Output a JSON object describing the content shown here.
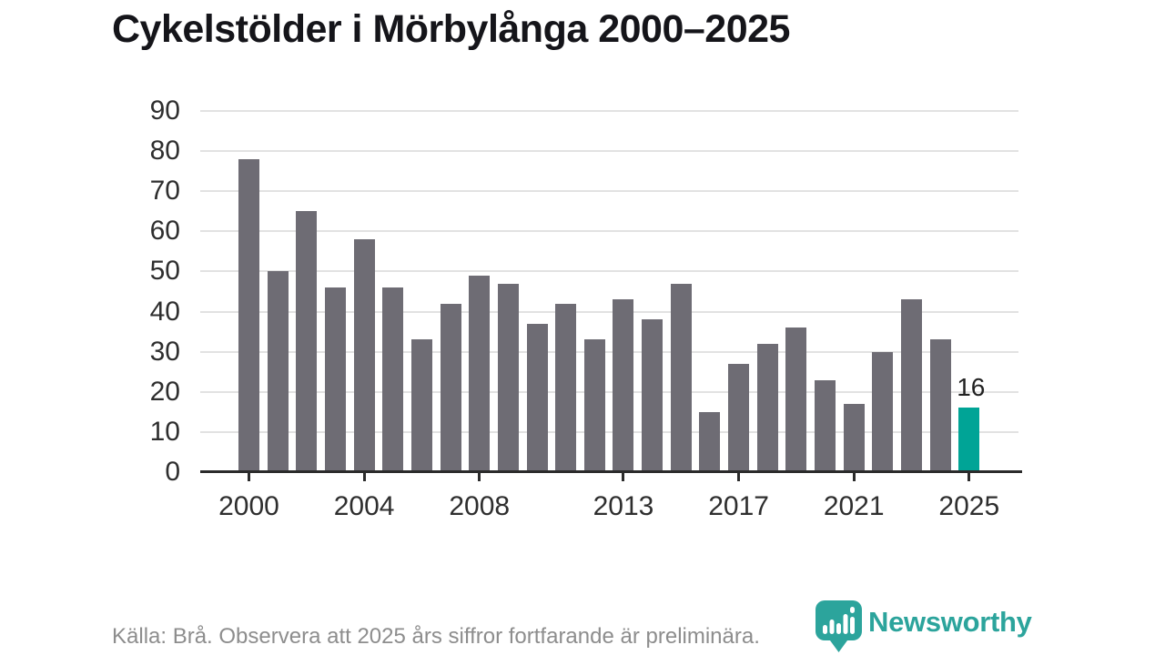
{
  "header": {
    "title": "Cykelstölder i Mörbylånga 2000–2025"
  },
  "chart_data": {
    "type": "bar",
    "title": "Cykelstölder i Mörbylånga 2000–2025",
    "categories": [
      2000,
      2001,
      2002,
      2003,
      2004,
      2005,
      2006,
      2007,
      2008,
      2009,
      2010,
      2011,
      2012,
      2013,
      2014,
      2015,
      2016,
      2017,
      2018,
      2019,
      2020,
      2021,
      2022,
      2023,
      2024,
      2025
    ],
    "values": [
      78,
      50,
      65,
      46,
      58,
      46,
      33,
      42,
      49,
      47,
      37,
      42,
      33,
      43,
      38,
      47,
      15,
      27,
      32,
      36,
      23,
      17,
      30,
      43,
      33,
      16
    ],
    "highlight_category": 2025,
    "data_label": {
      "category": 2025,
      "text": "16"
    },
    "ylim": [
      0,
      90
    ],
    "y_ticks": [
      0,
      10,
      20,
      30,
      40,
      50,
      60,
      70,
      80,
      90
    ],
    "x_tick_labels": [
      "2000",
      "2004",
      "2008",
      "2013",
      "2017",
      "2021",
      "2025"
    ],
    "grid": "horizontal",
    "legend": "none",
    "colors": {
      "bar": "#6e6c74",
      "highlight": "#00a496",
      "gridline": "#e2e2e2",
      "axis": "#2b2b2b",
      "tick_label": "#2e2e2e"
    }
  },
  "footer": {
    "source_note": "Källa: Brå. Observera att 2025 års siffror fortfarande är preliminära.",
    "brand": "Newsworthy"
  },
  "colors": {
    "brand_teal": "#2ca49c"
  }
}
